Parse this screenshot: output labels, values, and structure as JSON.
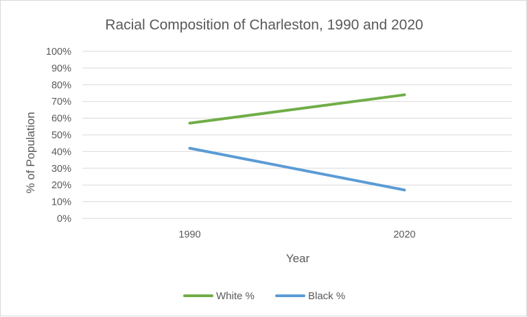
{
  "chart_data": {
    "type": "line",
    "title": "Racial Composition of Charleston, 1990 and 2020",
    "xlabel": "Year",
    "ylabel": "% of Population",
    "categories": [
      "1990",
      "2020"
    ],
    "ylim": [
      0,
      100
    ],
    "y_ticks": [
      "0%",
      "10%",
      "20%",
      "30%",
      "40%",
      "50%",
      "60%",
      "70%",
      "80%",
      "90%",
      "100%"
    ],
    "grid": true,
    "legend_position": "bottom",
    "series": [
      {
        "name": "White %",
        "values": [
          57,
          74
        ],
        "color": "#70ad47"
      },
      {
        "name": "Black %",
        "values": [
          42,
          17
        ],
        "color": "#5b9bd5"
      }
    ]
  }
}
